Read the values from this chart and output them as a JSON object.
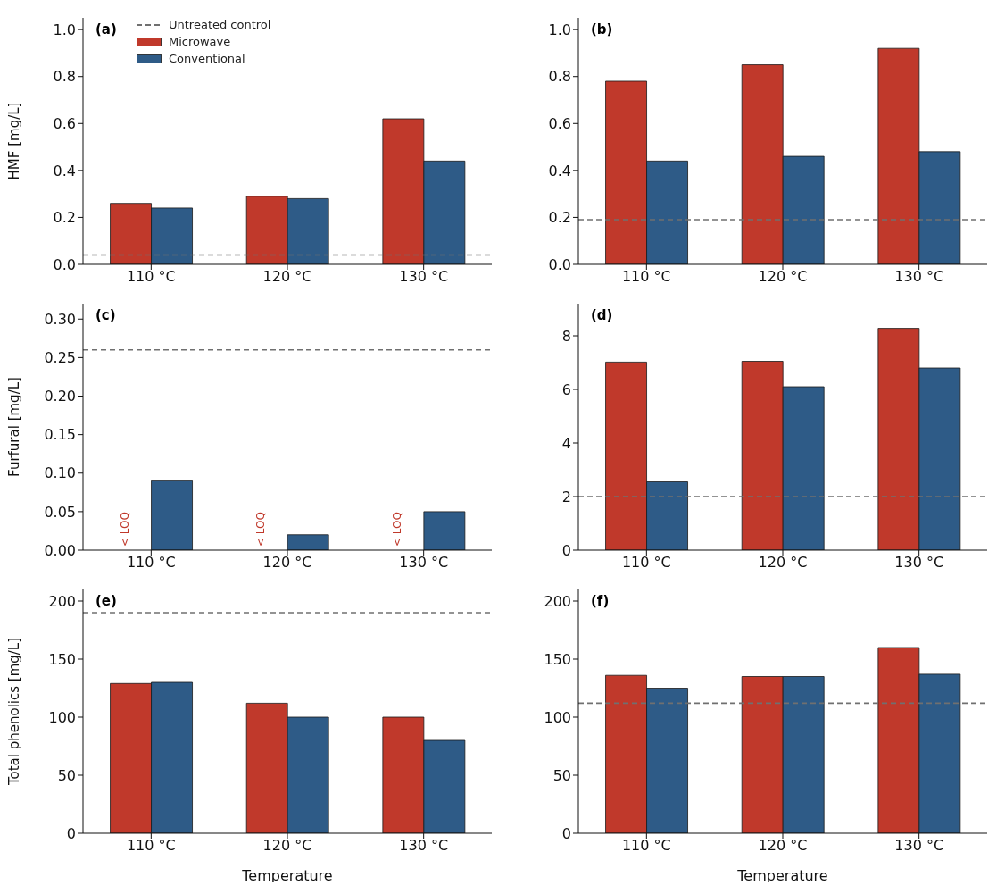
{
  "chart_data": [
    {
      "type": "bar",
      "title": "(a)",
      "ylabel": "HMF [mg/L]",
      "categories": [
        "110 °C",
        "120 °C",
        "130 °C"
      ],
      "series": [
        {
          "name": "Microwave",
          "color": "#c0392b",
          "values": [
            0.26,
            0.29,
            0.62
          ]
        },
        {
          "name": "Conventional",
          "color": "#2e5b87",
          "values": [
            0.24,
            0.28,
            0.44
          ]
        }
      ],
      "ylim": [
        0,
        1.05
      ],
      "yticks": [
        {
          "value": 0,
          "label": "0.0"
        },
        {
          "value": 0.2,
          "label": "0.2"
        },
        {
          "value": 0.4,
          "label": "0.4"
        },
        {
          "value": 0.6,
          "label": "0.6"
        },
        {
          "value": 0.8,
          "label": "0.8"
        },
        {
          "value": 1,
          "label": "1.0"
        }
      ],
      "ref_lines": [
        {
          "axis": "y",
          "value": 0.04,
          "label": "Untreated control",
          "color": "#707070",
          "line_style": "dashed"
        }
      ],
      "legend": "top left"
    },
    {
      "type": "bar",
      "title": "(b)",
      "categories": [
        "110 °C",
        "120 °C",
        "130 °C"
      ],
      "series": [
        {
          "color": "#c0392b",
          "values": [
            0.78,
            0.85,
            0.92
          ]
        },
        {
          "color": "#2e5b87",
          "values": [
            0.44,
            0.46,
            0.48
          ]
        }
      ],
      "ylim": [
        0,
        1.05
      ],
      "yticks": [
        {
          "value": 0,
          "label": "0.0"
        },
        {
          "value": 0.2,
          "label": "0.2"
        },
        {
          "value": 0.4,
          "label": "0.4"
        },
        {
          "value": 0.6,
          "label": "0.6"
        },
        {
          "value": 0.8,
          "label": "0.8"
        },
        {
          "value": 1,
          "label": "1.0"
        }
      ],
      "ref_lines": [
        {
          "axis": "y",
          "value": 0.19,
          "color": "#707070",
          "line_style": "dashed"
        }
      ]
    },
    {
      "type": "bar",
      "title": "(c)",
      "ylabel": "Furfural [mg/L]",
      "categories": [
        "110 °C",
        "120 °C",
        "130 °C"
      ],
      "series": [
        {
          "color": "#c0392b",
          "values": [
            null,
            null,
            null
          ],
          "value_labels": [
            "< LOQ",
            "< LOQ",
            "< LOQ"
          ]
        },
        {
          "color": "#2e5b87",
          "values": [
            0.09,
            0.02,
            0.05
          ]
        }
      ],
      "ylim": [
        0,
        0.32
      ],
      "yticks": [
        {
          "value": 0,
          "label": "0.00"
        },
        {
          "value": 0.05,
          "label": "0.05"
        },
        {
          "value": 0.1,
          "label": "0.10"
        },
        {
          "value": 0.15,
          "label": "0.15"
        },
        {
          "value": 0.2,
          "label": "0.20"
        },
        {
          "value": 0.25,
          "label": "0.25"
        },
        {
          "value": 0.3,
          "label": "0.30"
        }
      ],
      "ref_lines": [
        {
          "axis": "y",
          "value": 0.26,
          "color": "#707070",
          "line_style": "dashed"
        }
      ]
    },
    {
      "type": "bar",
      "title": "(d)",
      "categories": [
        "110 °C",
        "120 °C",
        "130 °C"
      ],
      "series": [
        {
          "color": "#c0392b",
          "values": [
            7.02,
            7.05,
            8.28
          ]
        },
        {
          "color": "#2e5b87",
          "values": [
            2.55,
            6.1,
            6.8
          ]
        }
      ],
      "ylim": [
        0,
        9.2
      ],
      "yticks": [
        0,
        2,
        4,
        6,
        8
      ],
      "ref_lines": [
        {
          "axis": "y",
          "value": 2,
          "color": "#707070",
          "line_style": "dashed"
        }
      ]
    },
    {
      "type": "bar",
      "title": "(e)",
      "xlabel": "Temperature",
      "ylabel": "Total phenolics [mg/L]",
      "categories": [
        "110 °C",
        "120 °C",
        "130 °C"
      ],
      "series": [
        {
          "color": "#c0392b",
          "values": [
            129,
            112,
            100
          ]
        },
        {
          "color": "#2e5b87",
          "values": [
            130,
            100,
            80
          ]
        }
      ],
      "ylim": [
        0,
        210
      ],
      "yticks": [
        0,
        50,
        100,
        150,
        200
      ],
      "ref_lines": [
        {
          "axis": "y",
          "value": 190,
          "color": "#707070",
          "line_style": "dashed"
        }
      ]
    },
    {
      "type": "bar",
      "title": "(f)",
      "xlabel": "Temperature",
      "categories": [
        "110 °C",
        "120 °C",
        "130 °C"
      ],
      "series": [
        {
          "color": "#c0392b",
          "values": [
            136,
            135,
            160
          ]
        },
        {
          "color": "#2e5b87",
          "values": [
            125,
            135,
            137
          ]
        }
      ],
      "ylim": [
        0,
        210
      ],
      "yticks": [
        0,
        50,
        100,
        150,
        200
      ],
      "ref_lines": [
        {
          "axis": "y",
          "value": 112,
          "color": "#707070",
          "line_style": "dashed"
        }
      ]
    }
  ]
}
